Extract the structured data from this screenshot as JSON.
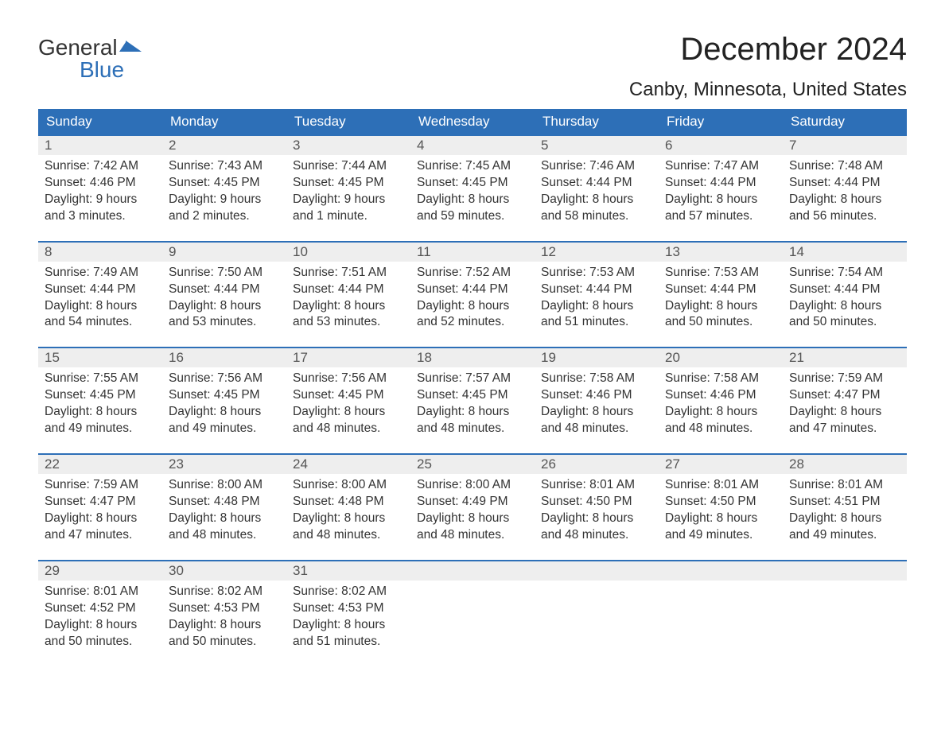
{
  "logo": {
    "word1": "General",
    "word2": "Blue",
    "accent_color": "#2d6fb7"
  },
  "title": "December 2024",
  "location": "Canby, Minnesota, United States",
  "colors": {
    "header_bg": "#2d6fb7",
    "header_text": "#ffffff",
    "daynum_bg": "#eeeeee",
    "week_border": "#2d6fb7",
    "text": "#333333",
    "logo_blue": "#2d6fb7"
  },
  "day_headers": [
    "Sunday",
    "Monday",
    "Tuesday",
    "Wednesday",
    "Thursday",
    "Friday",
    "Saturday"
  ],
  "weeks": [
    [
      {
        "n": "1",
        "sunrise": "Sunrise: 7:42 AM",
        "sunset": "Sunset: 4:46 PM",
        "d1": "Daylight: 9 hours",
        "d2": "and 3 minutes."
      },
      {
        "n": "2",
        "sunrise": "Sunrise: 7:43 AM",
        "sunset": "Sunset: 4:45 PM",
        "d1": "Daylight: 9 hours",
        "d2": "and 2 minutes."
      },
      {
        "n": "3",
        "sunrise": "Sunrise: 7:44 AM",
        "sunset": "Sunset: 4:45 PM",
        "d1": "Daylight: 9 hours",
        "d2": "and 1 minute."
      },
      {
        "n": "4",
        "sunrise": "Sunrise: 7:45 AM",
        "sunset": "Sunset: 4:45 PM",
        "d1": "Daylight: 8 hours",
        "d2": "and 59 minutes."
      },
      {
        "n": "5",
        "sunrise": "Sunrise: 7:46 AM",
        "sunset": "Sunset: 4:44 PM",
        "d1": "Daylight: 8 hours",
        "d2": "and 58 minutes."
      },
      {
        "n": "6",
        "sunrise": "Sunrise: 7:47 AM",
        "sunset": "Sunset: 4:44 PM",
        "d1": "Daylight: 8 hours",
        "d2": "and 57 minutes."
      },
      {
        "n": "7",
        "sunrise": "Sunrise: 7:48 AM",
        "sunset": "Sunset: 4:44 PM",
        "d1": "Daylight: 8 hours",
        "d2": "and 56 minutes."
      }
    ],
    [
      {
        "n": "8",
        "sunrise": "Sunrise: 7:49 AM",
        "sunset": "Sunset: 4:44 PM",
        "d1": "Daylight: 8 hours",
        "d2": "and 54 minutes."
      },
      {
        "n": "9",
        "sunrise": "Sunrise: 7:50 AM",
        "sunset": "Sunset: 4:44 PM",
        "d1": "Daylight: 8 hours",
        "d2": "and 53 minutes."
      },
      {
        "n": "10",
        "sunrise": "Sunrise: 7:51 AM",
        "sunset": "Sunset: 4:44 PM",
        "d1": "Daylight: 8 hours",
        "d2": "and 53 minutes."
      },
      {
        "n": "11",
        "sunrise": "Sunrise: 7:52 AM",
        "sunset": "Sunset: 4:44 PM",
        "d1": "Daylight: 8 hours",
        "d2": "and 52 minutes."
      },
      {
        "n": "12",
        "sunrise": "Sunrise: 7:53 AM",
        "sunset": "Sunset: 4:44 PM",
        "d1": "Daylight: 8 hours",
        "d2": "and 51 minutes."
      },
      {
        "n": "13",
        "sunrise": "Sunrise: 7:53 AM",
        "sunset": "Sunset: 4:44 PM",
        "d1": "Daylight: 8 hours",
        "d2": "and 50 minutes."
      },
      {
        "n": "14",
        "sunrise": "Sunrise: 7:54 AM",
        "sunset": "Sunset: 4:44 PM",
        "d1": "Daylight: 8 hours",
        "d2": "and 50 minutes."
      }
    ],
    [
      {
        "n": "15",
        "sunrise": "Sunrise: 7:55 AM",
        "sunset": "Sunset: 4:45 PM",
        "d1": "Daylight: 8 hours",
        "d2": "and 49 minutes."
      },
      {
        "n": "16",
        "sunrise": "Sunrise: 7:56 AM",
        "sunset": "Sunset: 4:45 PM",
        "d1": "Daylight: 8 hours",
        "d2": "and 49 minutes."
      },
      {
        "n": "17",
        "sunrise": "Sunrise: 7:56 AM",
        "sunset": "Sunset: 4:45 PM",
        "d1": "Daylight: 8 hours",
        "d2": "and 48 minutes."
      },
      {
        "n": "18",
        "sunrise": "Sunrise: 7:57 AM",
        "sunset": "Sunset: 4:45 PM",
        "d1": "Daylight: 8 hours",
        "d2": "and 48 minutes."
      },
      {
        "n": "19",
        "sunrise": "Sunrise: 7:58 AM",
        "sunset": "Sunset: 4:46 PM",
        "d1": "Daylight: 8 hours",
        "d2": "and 48 minutes."
      },
      {
        "n": "20",
        "sunrise": "Sunrise: 7:58 AM",
        "sunset": "Sunset: 4:46 PM",
        "d1": "Daylight: 8 hours",
        "d2": "and 48 minutes."
      },
      {
        "n": "21",
        "sunrise": "Sunrise: 7:59 AM",
        "sunset": "Sunset: 4:47 PM",
        "d1": "Daylight: 8 hours",
        "d2": "and 47 minutes."
      }
    ],
    [
      {
        "n": "22",
        "sunrise": "Sunrise: 7:59 AM",
        "sunset": "Sunset: 4:47 PM",
        "d1": "Daylight: 8 hours",
        "d2": "and 47 minutes."
      },
      {
        "n": "23",
        "sunrise": "Sunrise: 8:00 AM",
        "sunset": "Sunset: 4:48 PM",
        "d1": "Daylight: 8 hours",
        "d2": "and 48 minutes."
      },
      {
        "n": "24",
        "sunrise": "Sunrise: 8:00 AM",
        "sunset": "Sunset: 4:48 PM",
        "d1": "Daylight: 8 hours",
        "d2": "and 48 minutes."
      },
      {
        "n": "25",
        "sunrise": "Sunrise: 8:00 AM",
        "sunset": "Sunset: 4:49 PM",
        "d1": "Daylight: 8 hours",
        "d2": "and 48 minutes."
      },
      {
        "n": "26",
        "sunrise": "Sunrise: 8:01 AM",
        "sunset": "Sunset: 4:50 PM",
        "d1": "Daylight: 8 hours",
        "d2": "and 48 minutes."
      },
      {
        "n": "27",
        "sunrise": "Sunrise: 8:01 AM",
        "sunset": "Sunset: 4:50 PM",
        "d1": "Daylight: 8 hours",
        "d2": "and 49 minutes."
      },
      {
        "n": "28",
        "sunrise": "Sunrise: 8:01 AM",
        "sunset": "Sunset: 4:51 PM",
        "d1": "Daylight: 8 hours",
        "d2": "and 49 minutes."
      }
    ],
    [
      {
        "n": "29",
        "sunrise": "Sunrise: 8:01 AM",
        "sunset": "Sunset: 4:52 PM",
        "d1": "Daylight: 8 hours",
        "d2": "and 50 minutes."
      },
      {
        "n": "30",
        "sunrise": "Sunrise: 8:02 AM",
        "sunset": "Sunset: 4:53 PM",
        "d1": "Daylight: 8 hours",
        "d2": "and 50 minutes."
      },
      {
        "n": "31",
        "sunrise": "Sunrise: 8:02 AM",
        "sunset": "Sunset: 4:53 PM",
        "d1": "Daylight: 8 hours",
        "d2": "and 51 minutes."
      },
      {
        "empty": true
      },
      {
        "empty": true
      },
      {
        "empty": true
      },
      {
        "empty": true
      }
    ]
  ]
}
